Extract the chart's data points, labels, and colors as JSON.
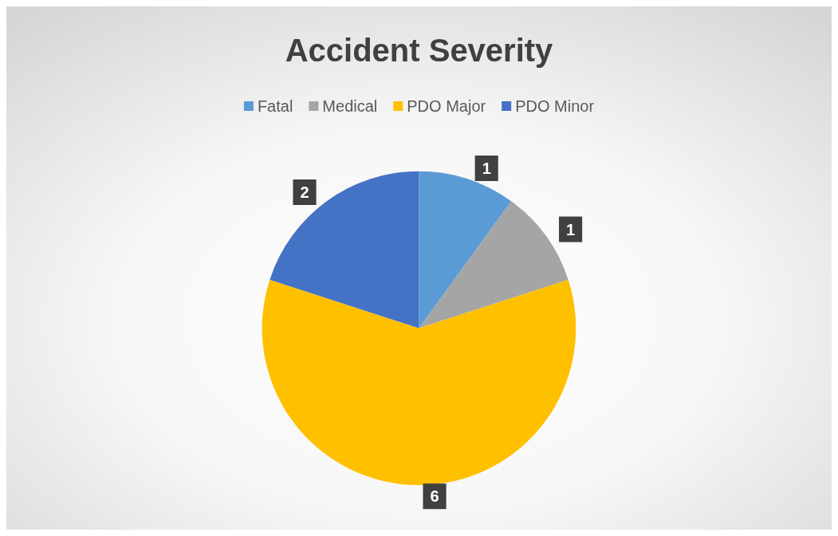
{
  "chart_data": {
    "type": "pie",
    "title": "Accident Severity",
    "categories": [
      "Fatal",
      "Medical",
      "PDO Major",
      "PDO Minor"
    ],
    "values": [
      1,
      1,
      6,
      2
    ],
    "colors": [
      "#5b9bd5",
      "#a5a5a5",
      "#ffc000",
      "#4472c4"
    ],
    "legend": "top",
    "data_labels": true
  }
}
